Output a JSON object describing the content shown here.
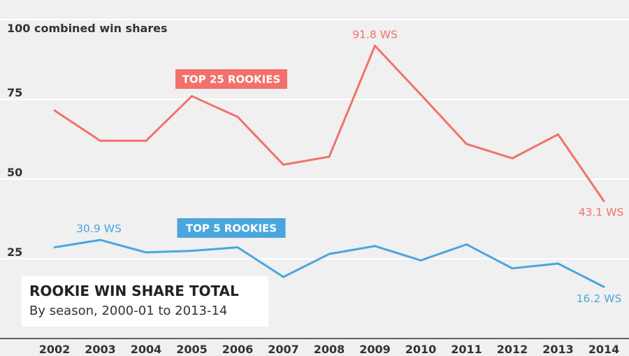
{
  "chart_data": {
    "type": "line",
    "title": "ROOKIE WIN SHARE TOTAL",
    "subtitle": "By season, 2000-01 to 2013-14",
    "ylabel": "100 combined win shares",
    "ylim": [
      0,
      100
    ],
    "yticks": [
      "25",
      "50",
      "75"
    ],
    "categories": [
      "2002",
      "2003",
      "2004",
      "2005",
      "2006",
      "2007",
      "2008",
      "2009",
      "2010",
      "2011",
      "2012",
      "2013",
      "2014"
    ],
    "series": [
      {
        "name": "TOP 25 ROOKIES",
        "color": "#f2716b",
        "values": [
          71.5,
          62,
          62,
          76,
          69.5,
          54.5,
          57,
          91.8,
          76.5,
          61,
          56.5,
          64,
          43.1
        ]
      },
      {
        "name": "TOP 5 ROOKIES",
        "color": "#4aa6dd",
        "values": [
          28.6,
          30.9,
          27,
          27.5,
          28.6,
          19.3,
          26.5,
          29,
          24.5,
          29.5,
          22,
          23.5,
          16.2
        ]
      }
    ],
    "annotations": [
      {
        "series": 0,
        "index": 7,
        "text": "91.8 WS"
      },
      {
        "series": 0,
        "index": 12,
        "text": "43.1 WS"
      },
      {
        "series": 1,
        "index": 1,
        "text": "30.9  WS"
      },
      {
        "series": 1,
        "index": 12,
        "text": "16.2  WS"
      }
    ],
    "grid": true,
    "legend": "inline-labels"
  }
}
